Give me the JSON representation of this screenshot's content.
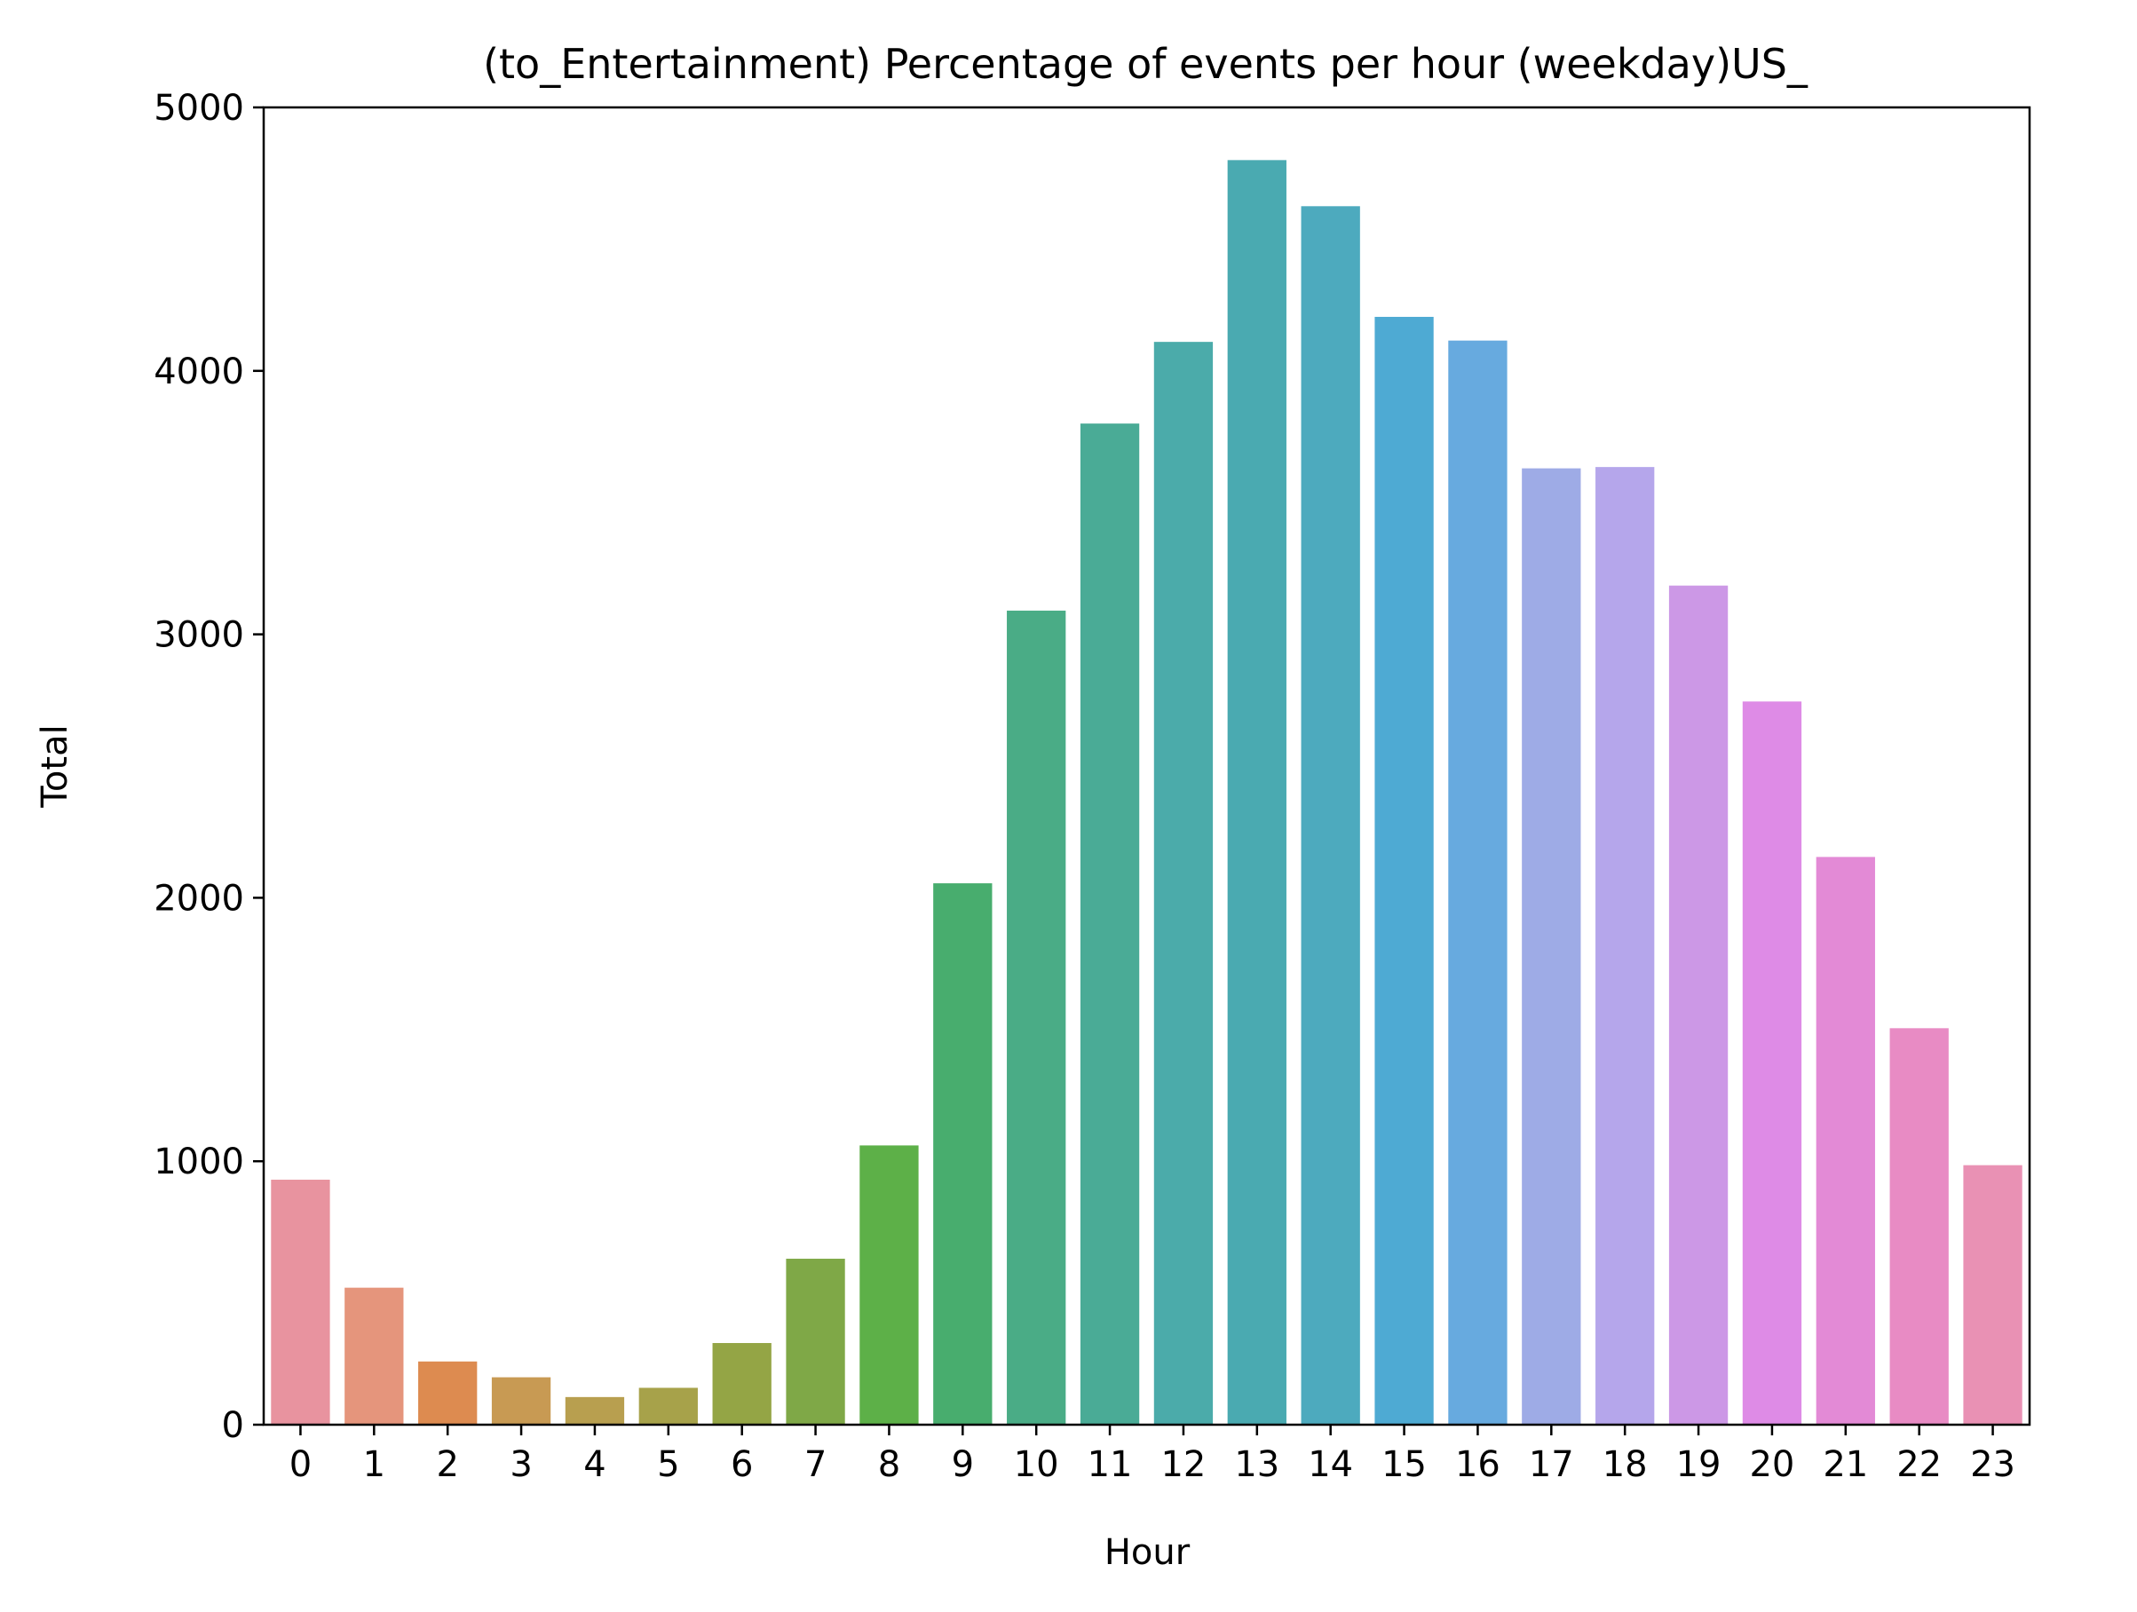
{
  "chart_data": {
    "type": "bar",
    "title": "(to_Entertainment) Percentage of events per hour (weekday)US_",
    "xlabel": "Hour",
    "ylabel": "Total",
    "categories": [
      "0",
      "1",
      "2",
      "3",
      "4",
      "5",
      "6",
      "7",
      "8",
      "9",
      "10",
      "11",
      "12",
      "13",
      "14",
      "15",
      "16",
      "17",
      "18",
      "19",
      "20",
      "21",
      "22",
      "23"
    ],
    "values": [
      930,
      520,
      240,
      180,
      105,
      140,
      310,
      630,
      1060,
      2055,
      3090,
      3800,
      4110,
      4800,
      4625,
      4205,
      4115,
      3630,
      3635,
      3185,
      2745,
      2155,
      1505,
      985
    ],
    "ylim": [
      0,
      5000
    ],
    "yticks": [
      0,
      1000,
      2000,
      3000,
      4000,
      5000
    ],
    "grid": false,
    "colors": [
      "#e8939f",
      "#e5957c",
      "#dd8b50",
      "#c89a53",
      "#b89f4f",
      "#a7a24a",
      "#94a545",
      "#7fa847",
      "#5db048",
      "#48ad6e",
      "#4aac86",
      "#4aab96",
      "#4babaa",
      "#4aaab1",
      "#4daabe",
      "#4eaad3",
      "#67aadf",
      "#9eabe6",
      "#b5a6eb",
      "#cc98e6",
      "#de8be6",
      "#e38ad6",
      "#e88bc4",
      "#e991b4"
    ]
  }
}
